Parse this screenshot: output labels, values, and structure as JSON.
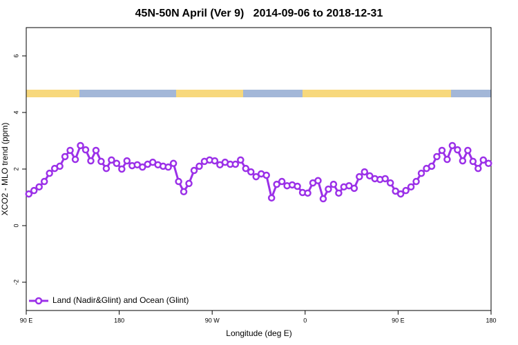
{
  "chart_data": {
    "type": "line",
    "title": "45N-50N April (Ver 9)   2014-09-06 to 2018-12-31",
    "xlabel": "Longitude (deg E)",
    "ylabel": "XCO2 - MLO trend (ppm)",
    "x": [
      92.5,
      97.5,
      102.5,
      107.5,
      112.5,
      117.5,
      122.5,
      127.5,
      132.5,
      137.5,
      142.5,
      147.5,
      152.5,
      157.5,
      162.5,
      167.5,
      172.5,
      177.5,
      182.5,
      187.5,
      192.5,
      197.5,
      202.5,
      207.5,
      212.5,
      217.5,
      222.5,
      227.5,
      232.5,
      237.5,
      242.5,
      247.5,
      252.5,
      257.5,
      262.5,
      267.5,
      272.5,
      277.5,
      282.5,
      287.5,
      292.5,
      297.5,
      302.5,
      307.5,
      312.5,
      317.5,
      322.5,
      327.5,
      332.5,
      337.5,
      342.5,
      347.5,
      352.5,
      357.5,
      362.5,
      367.5,
      372.5,
      377.5,
      382.5,
      387.5,
      392.5,
      397.5,
      402.5,
      407.5,
      412.5,
      417.5,
      422.5,
      427.5,
      432.5,
      437.5,
      442.5,
      447.5,
      452.5,
      457.5,
      462.5,
      467.5,
      472.5,
      477.5,
      482.5,
      487.5,
      492.5,
      497.5,
      502.5,
      507.5,
      512.5,
      517.5,
      522.5,
      527.5,
      532.5,
      537.5
    ],
    "series": [
      {
        "name": "Land (Nadir&Glint) and Ocean (Glint)",
        "color": "#9b30e8",
        "values": [
          1.12,
          1.24,
          1.37,
          1.56,
          1.85,
          2.02,
          2.1,
          2.44,
          2.66,
          2.34,
          2.83,
          2.68,
          2.29,
          2.66,
          2.27,
          2.02,
          2.32,
          2.2,
          2.0,
          2.29,
          2.12,
          2.15,
          2.07,
          2.17,
          2.24,
          2.15,
          2.1,
          2.07,
          2.2,
          1.56,
          1.2,
          1.49,
          1.95,
          2.1,
          2.27,
          2.32,
          2.29,
          2.15,
          2.24,
          2.17,
          2.17,
          2.32,
          2.02,
          1.9,
          1.73,
          1.83,
          1.78,
          0.98,
          1.46,
          1.56,
          1.41,
          1.44,
          1.39,
          1.17,
          1.15,
          1.51,
          1.59,
          0.95,
          1.29,
          1.46,
          1.15,
          1.37,
          1.41,
          1.32,
          1.73,
          1.9,
          1.76,
          1.66,
          1.63,
          1.66,
          1.51,
          1.22,
          1.12,
          1.24,
          1.37,
          1.56,
          1.85,
          2.02,
          2.1,
          2.44,
          2.66,
          2.34,
          2.83,
          2.68,
          2.29,
          2.66,
          2.27,
          2.02,
          2.32,
          2.2
        ]
      }
    ],
    "xlim": [
      90,
      540
    ],
    "xticks": [
      {
        "value": 90,
        "label": "90 E"
      },
      180,
      {
        "value": 270,
        "label": "90 W"
      },
      {
        "value": 360,
        "label": "0"
      },
      {
        "value": 450,
        "label": "90 E"
      },
      {
        "value": 540,
        "label": "180"
      }
    ],
    "ylim": [
      -3,
      7
    ],
    "yticks": [
      -2,
      0,
      2,
      4,
      6
    ],
    "legend": "bottom-left"
  }
}
